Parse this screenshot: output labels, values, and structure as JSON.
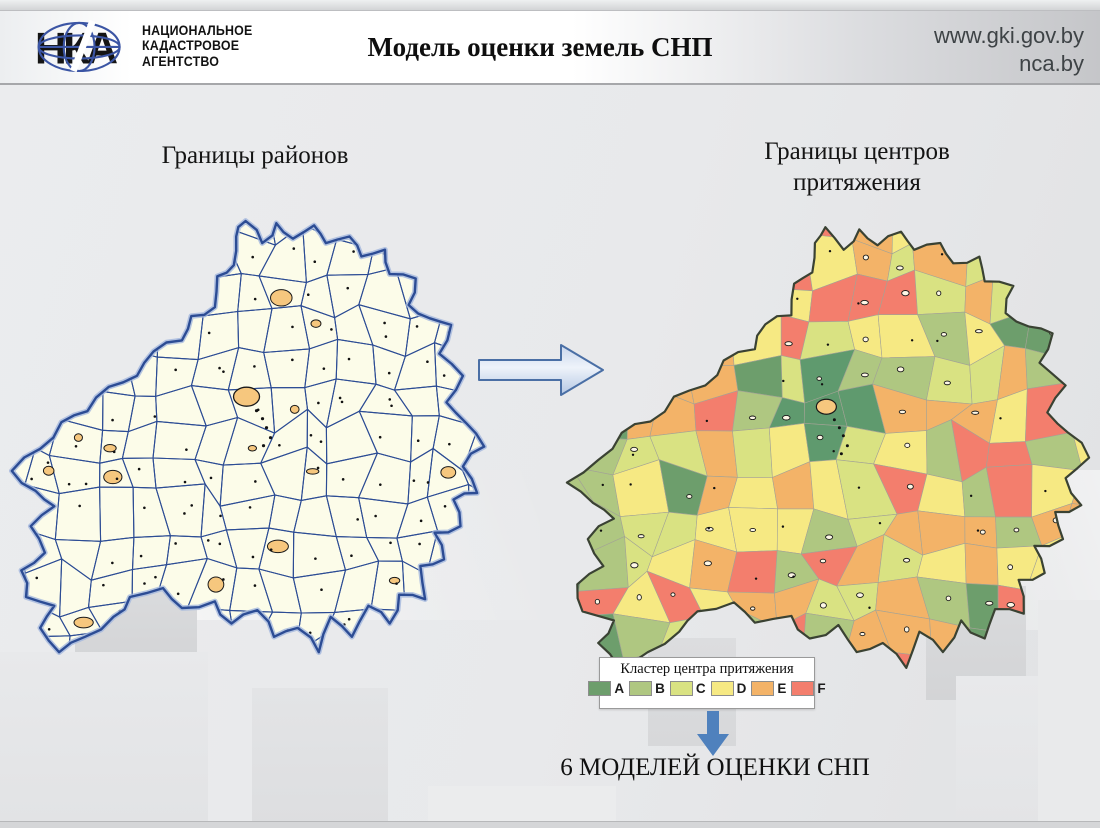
{
  "header": {
    "logo": {
      "mark": "НКА",
      "lines": [
        "НАЦИОНАЛЬНОЕ",
        "КАДАСТРОВОЕ",
        "АГЕНТСТВО"
      ]
    },
    "title": "Модель оценки земель СНП",
    "urls": [
      "www.gki.gov.by",
      "nca.by"
    ]
  },
  "maps": {
    "left": {
      "title": "Границы районов"
    },
    "right": {
      "title_line1": "Границы центров",
      "title_line2": "притяжения"
    }
  },
  "legend": {
    "title": "Кластер центра притяжения",
    "items": [
      {
        "label": "A",
        "color": "#6d9e6c"
      },
      {
        "label": "B",
        "color": "#afc781"
      },
      {
        "label": "C",
        "color": "#d9e282"
      },
      {
        "label": "D",
        "color": "#f6e983"
      },
      {
        "label": "E",
        "color": "#f3b368"
      },
      {
        "label": "F",
        "color": "#f37e6d"
      }
    ]
  },
  "footer": {
    "conclusion": "6 МОДЕЛЕЙ ОЦЕНКИ СНП"
  },
  "map_style": {
    "district_fill": "#fcfce9",
    "district_border": "#2c4c94",
    "district_glow": "#a3b7dd",
    "cluster_outline": "#3a4233",
    "cluster_cell_border": "#a3a396",
    "minsk_cluster_color": "#5f9a6e",
    "city_fill": "#f6c77e",
    "city_hollow_fill": "#fdf7e6",
    "city_border": "#1a1a1a",
    "settlement_dot": "#111111",
    "logo_globe": "#3b55a4",
    "logo_letters": "#141414"
  },
  "accents": {
    "transform_arrow_border": "#4a6fa5",
    "transform_arrow_fill_top": "#dfe8f5",
    "transform_arrow_fill_bottom": "#b4c7e3",
    "down_arrow": "#4f81bd"
  }
}
